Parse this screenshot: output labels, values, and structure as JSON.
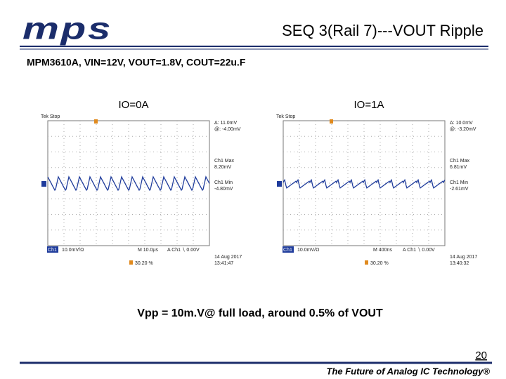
{
  "header": {
    "logo": "mps",
    "title": "SEQ 3(Rail 7)---VOUT Ripple",
    "subtitle": "MPM3610A, VIN=12V, VOUT=1.8V, COUT=22u.F"
  },
  "scopes": [
    {
      "label": "IO=0A",
      "status": "Tek Stop",
      "delta": "Δ: 11.0mV",
      "at": "@: -4.00mV",
      "max_label": "Ch1 Max",
      "max": "8.20mV",
      "min_label": "Ch1 Min",
      "min": "-4.80mV",
      "channel": "Ch1",
      "scale": "10.0mV/Ω",
      "time": "M 10.0µs",
      "trigger": "A  Ch1  ∖  0.00V",
      "percent": "30.20 %",
      "date": "14 Aug 2017",
      "clock": "13:41:47"
    },
    {
      "label": "IO=1A",
      "status": "Tek Stop",
      "delta": "Δ: 10.0mV",
      "at": "@: -3.20mV",
      "max_label": "Ch1 Max",
      "max": "6.81mV",
      "min_label": "Ch1 Min",
      "min": "-2.61mV",
      "channel": "Ch1",
      "scale": "10.0mV/Ω",
      "time": "M 400ns",
      "trigger": "A  Ch1  ∖  0.00V",
      "percent": "30.20 %",
      "date": "14 Aug 2017",
      "clock": "13:40:32"
    }
  ],
  "caption": "Vpp = 10m.V@ full load, around 0.5% of VOUT",
  "footer": {
    "page_number": "20",
    "tagline": "The Future of Analog IC Technology®"
  }
}
